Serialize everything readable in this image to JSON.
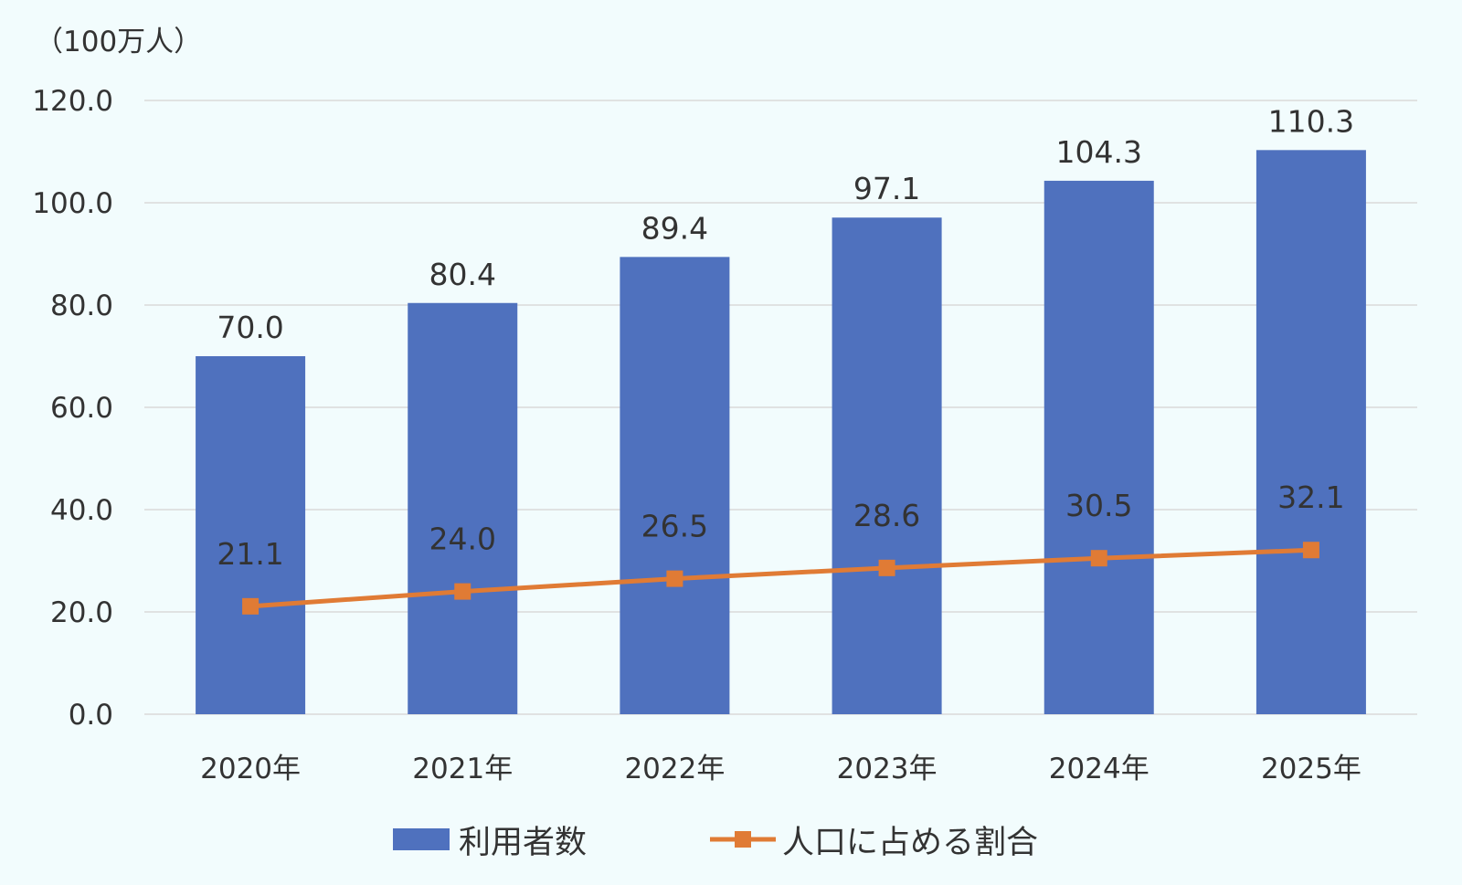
{
  "chart_data": {
    "type": "bar",
    "unit_label": "（100万人）",
    "categories": [
      "2020年",
      "2021年",
      "2022年",
      "2023年",
      "2024年",
      "2025年"
    ],
    "y_ticks": [
      "0.0",
      "20.0",
      "40.0",
      "60.0",
      "80.0",
      "100.0",
      "120.0"
    ],
    "ylim": [
      0,
      120
    ],
    "grid": true,
    "legend_position": "bottom",
    "series": [
      {
        "name": "利用者数",
        "type": "bar",
        "color": "#4f71be",
        "values": [
          70.0,
          80.4,
          89.4,
          97.1,
          104.3,
          110.3
        ],
        "labels": [
          "70.0",
          "80.4",
          "89.4",
          "97.1",
          "104.3",
          "110.3"
        ]
      },
      {
        "name": "人口に占める割合",
        "type": "line",
        "marker": "square",
        "color": "#e07b35",
        "values": [
          21.1,
          24.0,
          26.5,
          28.6,
          30.5,
          32.1
        ],
        "labels": [
          "21.1",
          "24.0",
          "26.5",
          "28.6",
          "30.5",
          "32.1"
        ]
      }
    ]
  }
}
